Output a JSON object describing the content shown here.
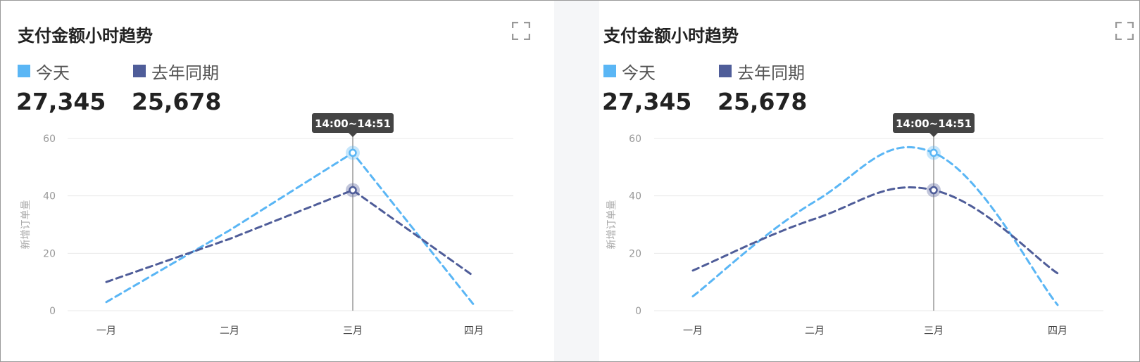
{
  "colors": {
    "today": "#5ab6f5",
    "last_year": "#4f5d99",
    "grid": "#e8e8e8",
    "crosshair": "#999999",
    "tooltip_bg": "#444444"
  },
  "panels": [
    {
      "title": "支付金额小时趋势",
      "fullscreen_icon": "fullscreen-icon",
      "legend": [
        {
          "label": "今天",
          "value": "27,345",
          "color": "#5ab6f5"
        },
        {
          "label": "去年同期",
          "value": "25,678",
          "color": "#4f5d99"
        }
      ],
      "tooltip": "14:00~14:51"
    },
    {
      "title": "支付金额小时趋势",
      "fullscreen_icon": "fullscreen-icon",
      "legend": [
        {
          "label": "今天",
          "value": "27,345",
          "color": "#5ab6f5"
        },
        {
          "label": "去年同期",
          "value": "25,678",
          "color": "#4f5d99"
        }
      ],
      "tooltip": "14:00~14:51"
    }
  ],
  "chart_data": [
    {
      "type": "line",
      "curve": "linear",
      "line_style": "dashed",
      "categories": [
        "一月",
        "二月",
        "三月",
        "四月"
      ],
      "series": [
        {
          "name": "今天",
          "values": [
            3,
            28,
            55,
            2
          ],
          "color": "#5ab6f5"
        },
        {
          "name": "去年同期",
          "values": [
            10,
            25,
            42,
            12
          ],
          "color": "#4f5d99"
        }
      ],
      "ylabel": "新增订单量",
      "yticks": [
        0,
        20,
        40,
        60
      ],
      "ylim": [
        0,
        60
      ],
      "highlight_category": "三月",
      "tooltip": "14:00~14:51",
      "grid": true
    },
    {
      "type": "line",
      "curve": "smooth",
      "line_style": "dashed",
      "categories": [
        "一月",
        "二月",
        "三月",
        "四月"
      ],
      "series": [
        {
          "name": "今天",
          "values": [
            5,
            38,
            55,
            2
          ],
          "color": "#5ab6f5"
        },
        {
          "name": "去年同期",
          "values": [
            14,
            32,
            42,
            13
          ],
          "color": "#4f5d99"
        }
      ],
      "ylabel": "新增订单量",
      "yticks": [
        0,
        20,
        40,
        60
      ],
      "ylim": [
        0,
        60
      ],
      "highlight_category": "三月",
      "tooltip": "14:00~14:51",
      "grid": true
    }
  ]
}
